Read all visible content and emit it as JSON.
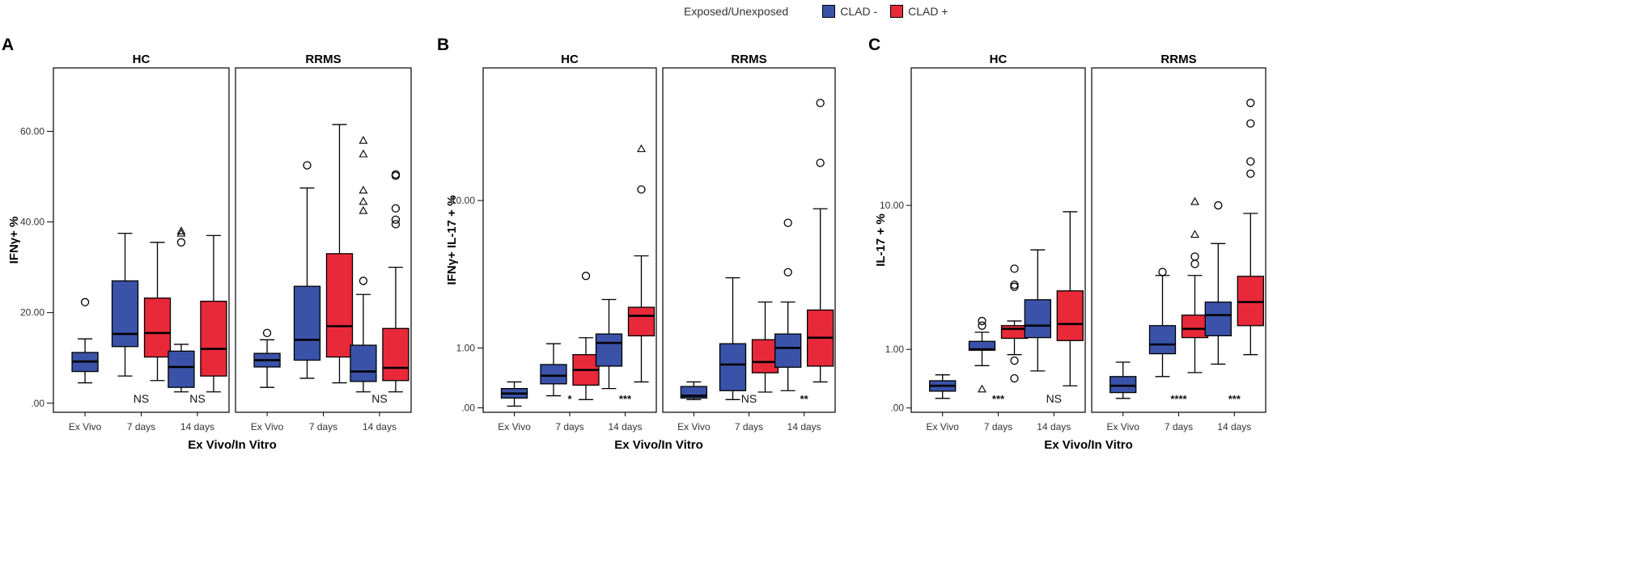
{
  "legend": {
    "title": "Exposed/Unexposed",
    "items": [
      {
        "label": "CLAD -",
        "color": "#3a52a8"
      },
      {
        "label": "CLAD +",
        "color": "#e8293a"
      }
    ]
  },
  "chart_data": [
    {
      "panel": "A",
      "type": "box",
      "scale": "linear",
      "ylabel": "IFNγ+ %",
      "xlabel": "Ex Vivo/In Vitro",
      "yticks": [
        0,
        20,
        40,
        60
      ],
      "ytick_labels": [
        ".00",
        "20.00",
        "40.00",
        "60.00"
      ],
      "ylim": [
        -2,
        74
      ],
      "facets": [
        {
          "title": "HC",
          "groups": [
            {
              "label": "Ex Vivo",
              "boxes": [
                {
                  "series": "CLAD -",
                  "min": 4.5,
                  "q1": 7,
                  "median": 9.2,
                  "q3": 11.2,
                  "max": 14.2,
                  "outliers": [
                    {
                      "v": 22.3,
                      "m": "o"
                    }
                  ]
                }
              ],
              "sig": ""
            },
            {
              "label": "7 days",
              "boxes": [
                {
                  "series": "CLAD -",
                  "min": 6,
                  "q1": 12.5,
                  "median": 15.3,
                  "q3": 27,
                  "max": 37.5,
                  "outliers": []
                },
                {
                  "series": "CLAD +",
                  "min": 5,
                  "q1": 10.2,
                  "median": 15.5,
                  "q3": 23.2,
                  "max": 35.5,
                  "outliers": []
                }
              ],
              "sig": "NS"
            },
            {
              "label": "14 days",
              "boxes": [
                {
                  "series": "CLAD -",
                  "min": 2.5,
                  "q1": 3.5,
                  "median": 8,
                  "q3": 11.5,
                  "max": 13,
                  "outliers": [
                    {
                      "v": 35.5,
                      "m": "o"
                    },
                    {
                      "v": 37.5,
                      "m": "t"
                    },
                    {
                      "v": 38,
                      "m": "t"
                    }
                  ]
                },
                {
                  "series": "CLAD +",
                  "min": 2.5,
                  "q1": 6,
                  "median": 12,
                  "q3": 22.5,
                  "max": 37,
                  "outliers": []
                }
              ],
              "sig": "NS"
            }
          ]
        },
        {
          "title": "RRMS",
          "groups": [
            {
              "label": "Ex Vivo",
              "boxes": [
                {
                  "series": "CLAD -",
                  "min": 3.5,
                  "q1": 8,
                  "median": 9.5,
                  "q3": 11,
                  "max": 14,
                  "outliers": [
                    {
                      "v": 15.5,
                      "m": "o"
                    }
                  ]
                }
              ],
              "sig": ""
            },
            {
              "label": "7 days",
              "boxes": [
                {
                  "series": "CLAD -",
                  "min": 5.5,
                  "q1": 9.5,
                  "median": 14,
                  "q3": 25.8,
                  "max": 47.5,
                  "outliers": [
                    {
                      "v": 52.5,
                      "m": "o"
                    }
                  ]
                },
                {
                  "series": "CLAD +",
                  "min": 4.5,
                  "q1": 10.2,
                  "median": 17,
                  "q3": 33,
                  "max": 61.5,
                  "outliers": []
                }
              ],
              "sig": ""
            },
            {
              "label": "14 days",
              "boxes": [
                {
                  "series": "CLAD -",
                  "min": 2.5,
                  "q1": 4.8,
                  "median": 7,
                  "q3": 12.8,
                  "max": 24,
                  "outliers": [
                    {
                      "v": 27,
                      "m": "o"
                    },
                    {
                      "v": 42.5,
                      "m": "t"
                    },
                    {
                      "v": 44.5,
                      "m": "t"
                    },
                    {
                      "v": 47,
                      "m": "t"
                    },
                    {
                      "v": 55,
                      "m": "t"
                    },
                    {
                      "v": 58,
                      "m": "t"
                    }
                  ]
                },
                {
                  "series": "CLAD +",
                  "min": 2.5,
                  "q1": 5,
                  "median": 7.8,
                  "q3": 16.5,
                  "max": 30,
                  "outliers": [
                    {
                      "v": 39.5,
                      "m": "o"
                    },
                    {
                      "v": 40.5,
                      "m": "o"
                    },
                    {
                      "v": 43,
                      "m": "o"
                    },
                    {
                      "v": 50.2,
                      "m": "o"
                    },
                    {
                      "v": 50.5,
                      "m": "o"
                    }
                  ]
                }
              ],
              "sig": "NS"
            }
          ]
        }
      ]
    },
    {
      "panel": "B",
      "type": "box",
      "scale": "log1p",
      "ylabel": "IFNγ+ IL-17 + %",
      "xlabel": "Ex Vivo/In Vitro",
      "yticks": [
        0,
        1,
        10
      ],
      "ytick_labels": [
        ".00",
        "1.00",
        "10.00"
      ],
      "ylim": [
        -0.05,
        50
      ],
      "facets": [
        {
          "title": "HC",
          "groups": [
            {
              "label": "Ex Vivo",
              "boxes": [
                {
                  "series": "CLAD -",
                  "min": 0.02,
                  "q1": 0.12,
                  "median": 0.18,
                  "q3": 0.25,
                  "max": 0.35,
                  "outliers": []
                }
              ],
              "sig": ""
            },
            {
              "label": "7 days",
              "boxes": [
                {
                  "series": "CLAD -",
                  "min": 0.15,
                  "q1": 0.32,
                  "median": 0.45,
                  "q3": 0.65,
                  "max": 1.1,
                  "outliers": []
                },
                {
                  "series": "CLAD +",
                  "min": 0.1,
                  "q1": 0.3,
                  "median": 0.55,
                  "q3": 0.85,
                  "max": 1.25,
                  "outliers": [
                    {
                      "v": 3.6,
                      "m": "o"
                    }
                  ]
                }
              ],
              "sig": "*"
            },
            {
              "label": "14 days",
              "boxes": [
                {
                  "series": "CLAD -",
                  "min": 0.25,
                  "q1": 0.62,
                  "median": 1.12,
                  "q3": 1.35,
                  "max": 2.5,
                  "outliers": []
                },
                {
                  "series": "CLAD +",
                  "min": 0.35,
                  "q1": 1.3,
                  "median": 1.9,
                  "q3": 2.2,
                  "max": 4.8,
                  "outliers": [
                    {
                      "v": 11.5,
                      "m": "o"
                    },
                    {
                      "v": 19,
                      "m": "t"
                    }
                  ]
                }
              ],
              "sig": "***"
            }
          ]
        },
        {
          "title": "RRMS",
          "groups": [
            {
              "label": "Ex Vivo",
              "boxes": [
                {
                  "series": "CLAD -",
                  "min": 0.1,
                  "q1": 0.12,
                  "median": 0.15,
                  "q3": 0.28,
                  "max": 0.35,
                  "outliers": []
                }
              ],
              "sig": ""
            },
            {
              "label": "7 days",
              "boxes": [
                {
                  "series": "CLAD -",
                  "min": 0.1,
                  "q1": 0.22,
                  "median": 0.65,
                  "q3": 1.1,
                  "max": 3.5,
                  "outliers": []
                },
                {
                  "series": "CLAD +",
                  "min": 0.2,
                  "q1": 0.5,
                  "median": 0.7,
                  "q3": 1.2,
                  "max": 2.4,
                  "outliers": []
                }
              ],
              "sig": "NS"
            },
            {
              "label": "14 days",
              "boxes": [
                {
                  "series": "CLAD -",
                  "min": 0.22,
                  "q1": 0.6,
                  "median": 1.0,
                  "q3": 1.35,
                  "max": 2.4,
                  "outliers": [
                    {
                      "v": 3.8,
                      "m": "o"
                    },
                    {
                      "v": 7.5,
                      "m": "o"
                    }
                  ]
                },
                {
                  "series": "CLAD +",
                  "min": 0.35,
                  "q1": 0.62,
                  "median": 1.25,
                  "q3": 2.1,
                  "max": 9,
                  "outliers": [
                    {
                      "v": 16,
                      "m": "o"
                    },
                    {
                      "v": 33,
                      "m": "o"
                    }
                  ]
                }
              ],
              "sig": "**"
            }
          ]
        }
      ]
    },
    {
      "panel": "C",
      "type": "box",
      "scale": "log1p",
      "ylabel": "IL-17 + %",
      "xlabel": "Ex Vivo/In Vitro",
      "yticks": [
        0,
        1,
        10
      ],
      "ytick_labels": [
        ".00",
        "1.00",
        "10.00"
      ],
      "ylim": [
        -0.05,
        55
      ],
      "facets": [
        {
          "title": "HC",
          "groups": [
            {
              "label": "Ex Vivo",
              "boxes": [
                {
                  "series": "CLAD -",
                  "min": 0.12,
                  "q1": 0.22,
                  "median": 0.3,
                  "q3": 0.38,
                  "max": 0.48,
                  "outliers": []
                }
              ],
              "sig": ""
            },
            {
              "label": "7 days",
              "boxes": [
                {
                  "series": "CLAD -",
                  "min": 0.65,
                  "q1": 0.98,
                  "median": 1.0,
                  "q3": 1.2,
                  "max": 1.45,
                  "outliers": [
                    {
                      "v": 0.25,
                      "m": "t"
                    },
                    {
                      "v": 1.65,
                      "m": "o"
                    },
                    {
                      "v": 1.8,
                      "m": "o"
                    }
                  ]
                },
                {
                  "series": "CLAD +",
                  "min": 0.88,
                  "q1": 1.28,
                  "median": 1.55,
                  "q3": 1.65,
                  "max": 1.8,
                  "outliers": [
                    {
                      "v": 0.42,
                      "m": "o"
                    },
                    {
                      "v": 0.75,
                      "m": "o"
                    },
                    {
                      "v": 3.2,
                      "m": "o"
                    },
                    {
                      "v": 3.3,
                      "m": "o"
                    },
                    {
                      "v": 4.2,
                      "m": "o"
                    }
                  ]
                }
              ],
              "sig": "***"
            },
            {
              "label": "14 days",
              "boxes": [
                {
                  "series": "CLAD -",
                  "min": 0.55,
                  "q1": 1.3,
                  "median": 1.65,
                  "q3": 2.6,
                  "max": 5.5,
                  "outliers": []
                },
                {
                  "series": "CLAD +",
                  "min": 0.3,
                  "q1": 1.22,
                  "median": 1.7,
                  "q3": 3.0,
                  "max": 9.2,
                  "outliers": []
                }
              ],
              "sig": "NS"
            }
          ]
        },
        {
          "title": "RRMS",
          "groups": [
            {
              "label": "Ex Vivo",
              "boxes": [
                {
                  "series": "CLAD -",
                  "min": 0.12,
                  "q1": 0.2,
                  "median": 0.3,
                  "q3": 0.45,
                  "max": 0.72,
                  "outliers": []
                }
              ],
              "sig": ""
            },
            {
              "label": "7 days",
              "boxes": [
                {
                  "series": "CLAD -",
                  "min": 0.45,
                  "q1": 0.9,
                  "median": 1.12,
                  "q3": 1.65,
                  "max": 3.8,
                  "outliers": [
                    {
                      "v": 4.0,
                      "m": "o"
                    }
                  ]
                },
                {
                  "series": "CLAD +",
                  "min": 0.52,
                  "q1": 1.3,
                  "median": 1.55,
                  "q3": 2.0,
                  "max": 3.8,
                  "outliers": [
                    {
                      "v": 4.5,
                      "m": "o"
                    },
                    {
                      "v": 5.0,
                      "m": "o"
                    },
                    {
                      "v": 6.8,
                      "m": "t"
                    },
                    {
                      "v": 10.5,
                      "m": "t"
                    }
                  ]
                }
              ],
              "sig": "****"
            },
            {
              "label": "14 days",
              "boxes": [
                {
                  "series": "CLAD -",
                  "min": 0.68,
                  "q1": 1.35,
                  "median": 2.0,
                  "q3": 2.5,
                  "max": 6.0,
                  "outliers": [
                    {
                      "v": 10,
                      "m": "o"
                    }
                  ]
                },
                {
                  "series": "CLAD +",
                  "min": 0.88,
                  "q1": 1.65,
                  "median": 2.5,
                  "q3": 3.75,
                  "max": 9.0,
                  "outliers": [
                    {
                      "v": 15,
                      "m": "o"
                    },
                    {
                      "v": 17.5,
                      "m": "o"
                    },
                    {
                      "v": 28,
                      "m": "o"
                    },
                    {
                      "v": 36,
                      "m": "o"
                    }
                  ]
                }
              ],
              "sig": "***"
            }
          ]
        }
      ]
    }
  ]
}
